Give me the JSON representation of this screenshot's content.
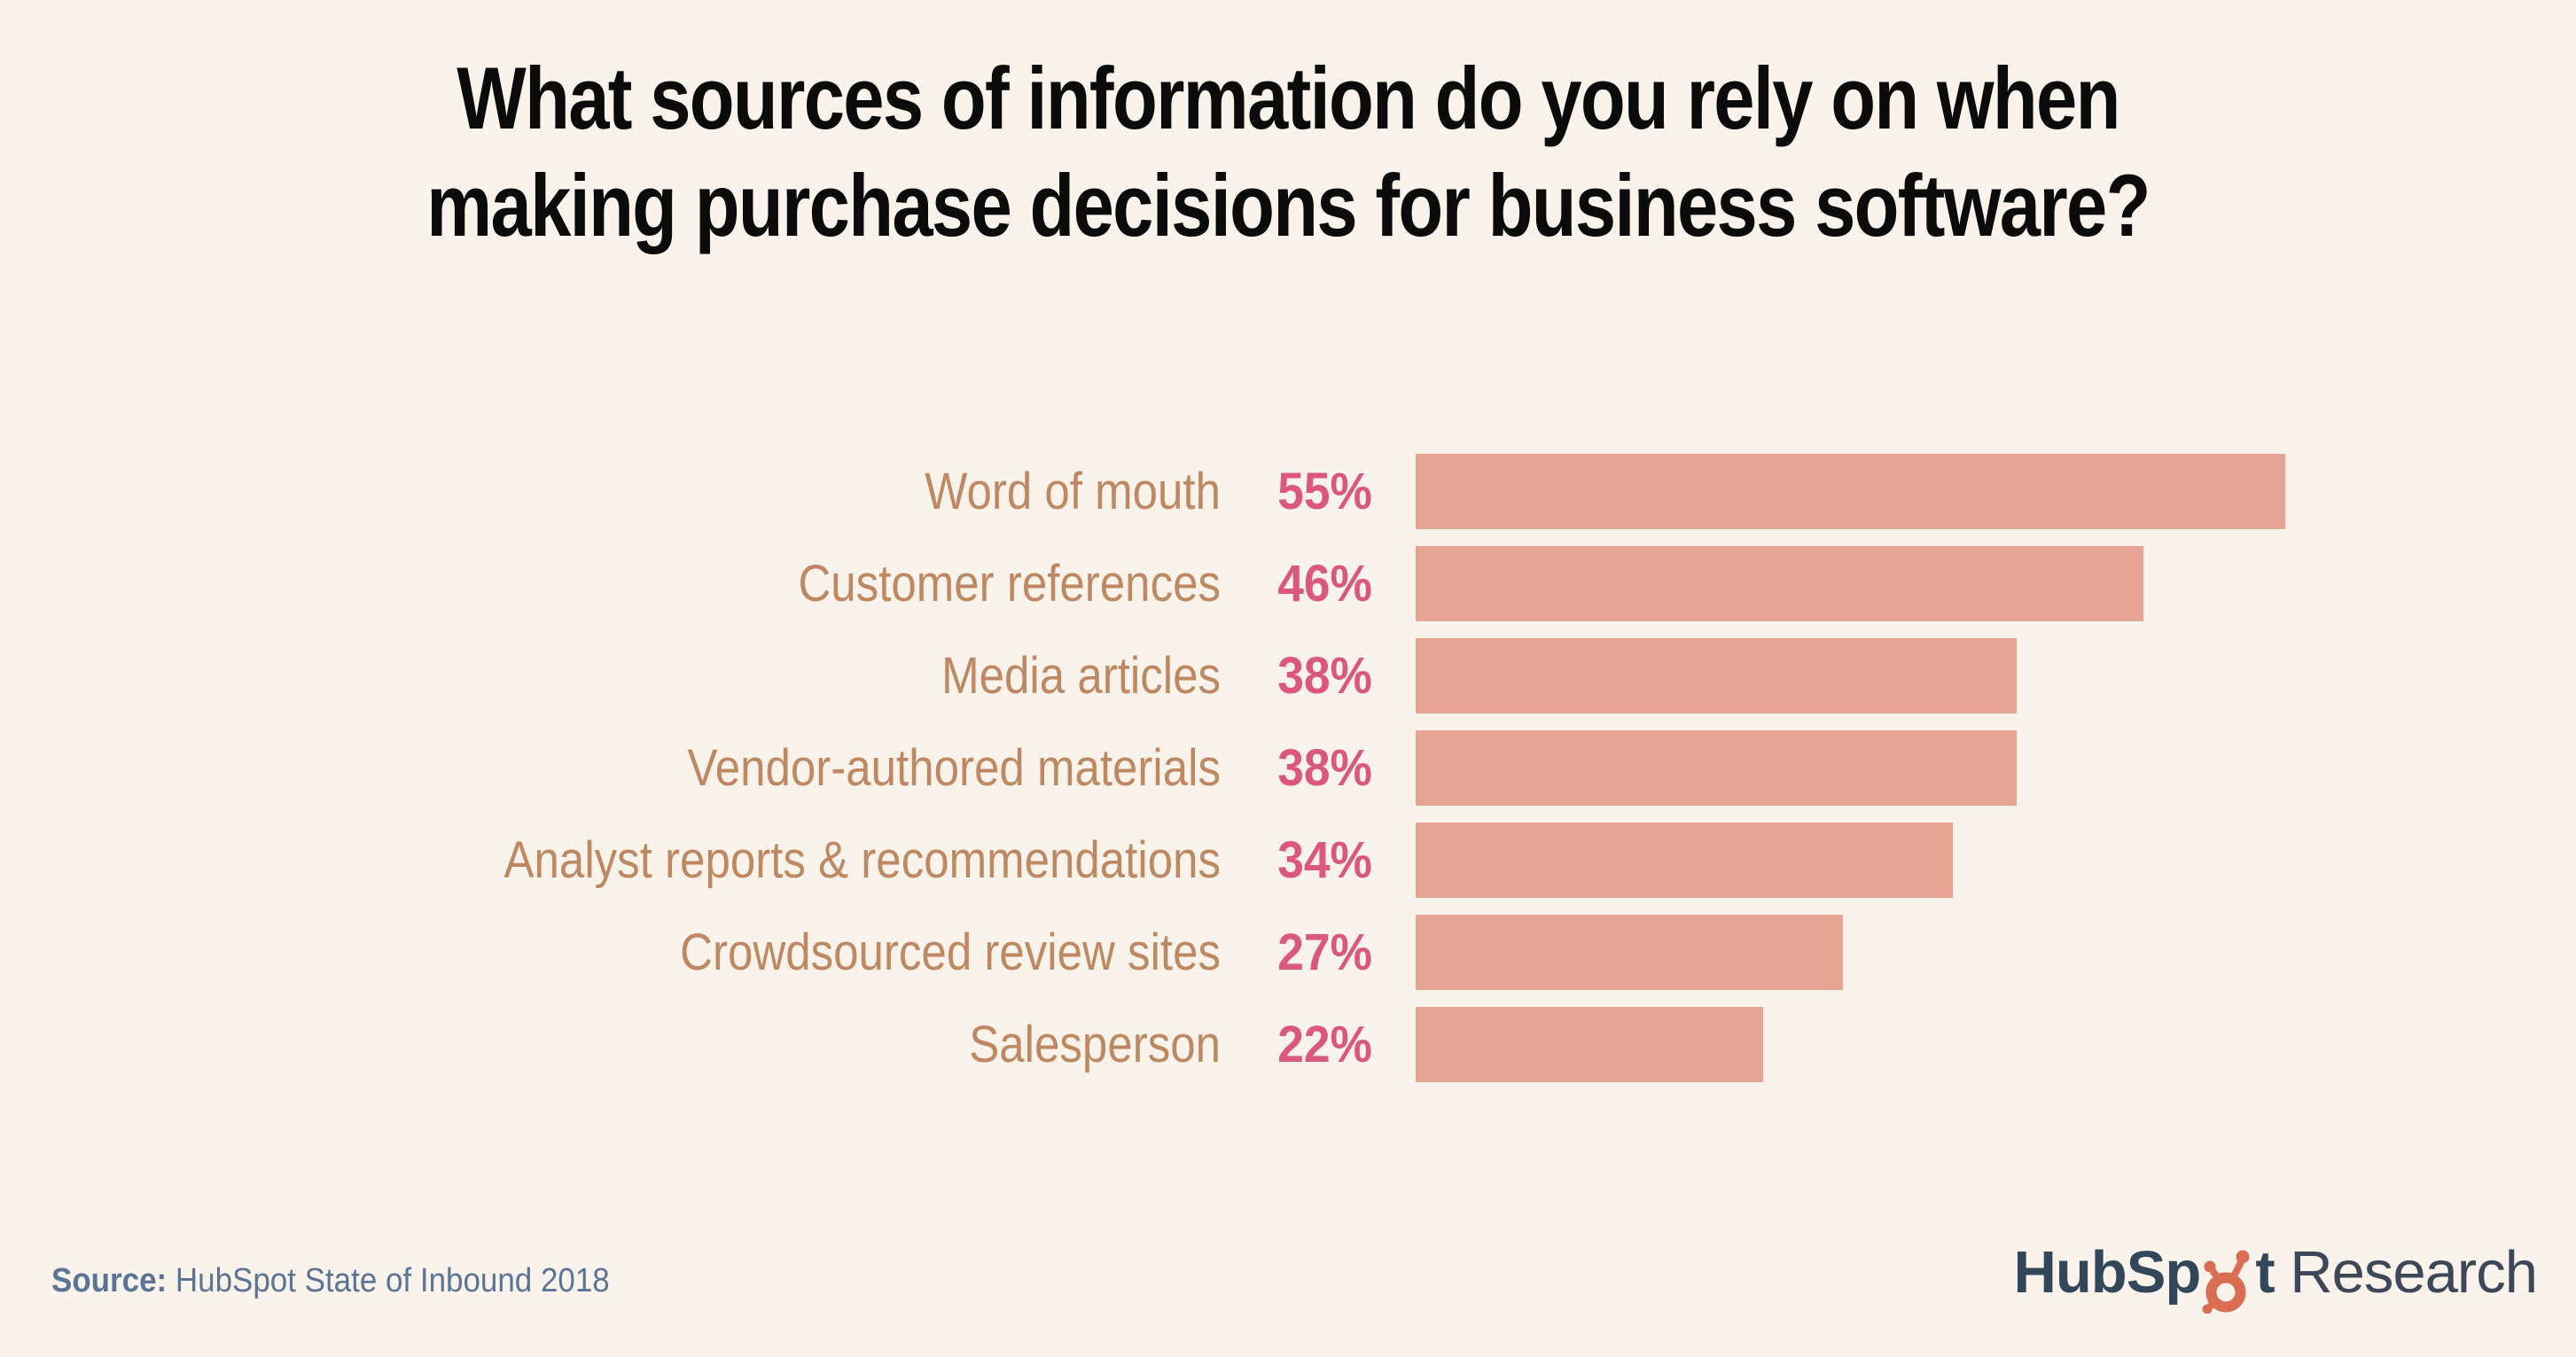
{
  "title": {
    "line1": "What sources of information do you rely on when",
    "line2": "making purchase decisions for business software?"
  },
  "chart_data": {
    "type": "bar",
    "orientation": "horizontal",
    "title": "What sources of information do you rely on when making purchase decisions for business software?",
    "categories": [
      "Word of mouth",
      "Customer references",
      "Media articles",
      "Vendor-authored materials",
      "Analyst reports & recommendations",
      "Crowdsourced review sites",
      "Salesperson"
    ],
    "values": [
      55,
      46,
      38,
      38,
      34,
      27,
      22
    ],
    "value_suffix": "%",
    "xlim": [
      0,
      60
    ],
    "axis_ticks": "none",
    "grid": false,
    "legend": false,
    "bar_order": "descending"
  },
  "theme": {
    "background": "#FAF3EB",
    "bar_color": "#E8A492",
    "category_label_color": "#BE8962",
    "value_label_color": "#DB5780",
    "title_color": "#0B0B0B",
    "source_color": "#5B7496",
    "brand_navy": "#33475B",
    "brand_orange": "#D96E53"
  },
  "footer": {
    "source_label": "Source:",
    "source_text": "HubSpot State of Inbound 2018",
    "brand_prefix": "HubSp",
    "brand_suffix": "t",
    "brand_word": "Research"
  }
}
